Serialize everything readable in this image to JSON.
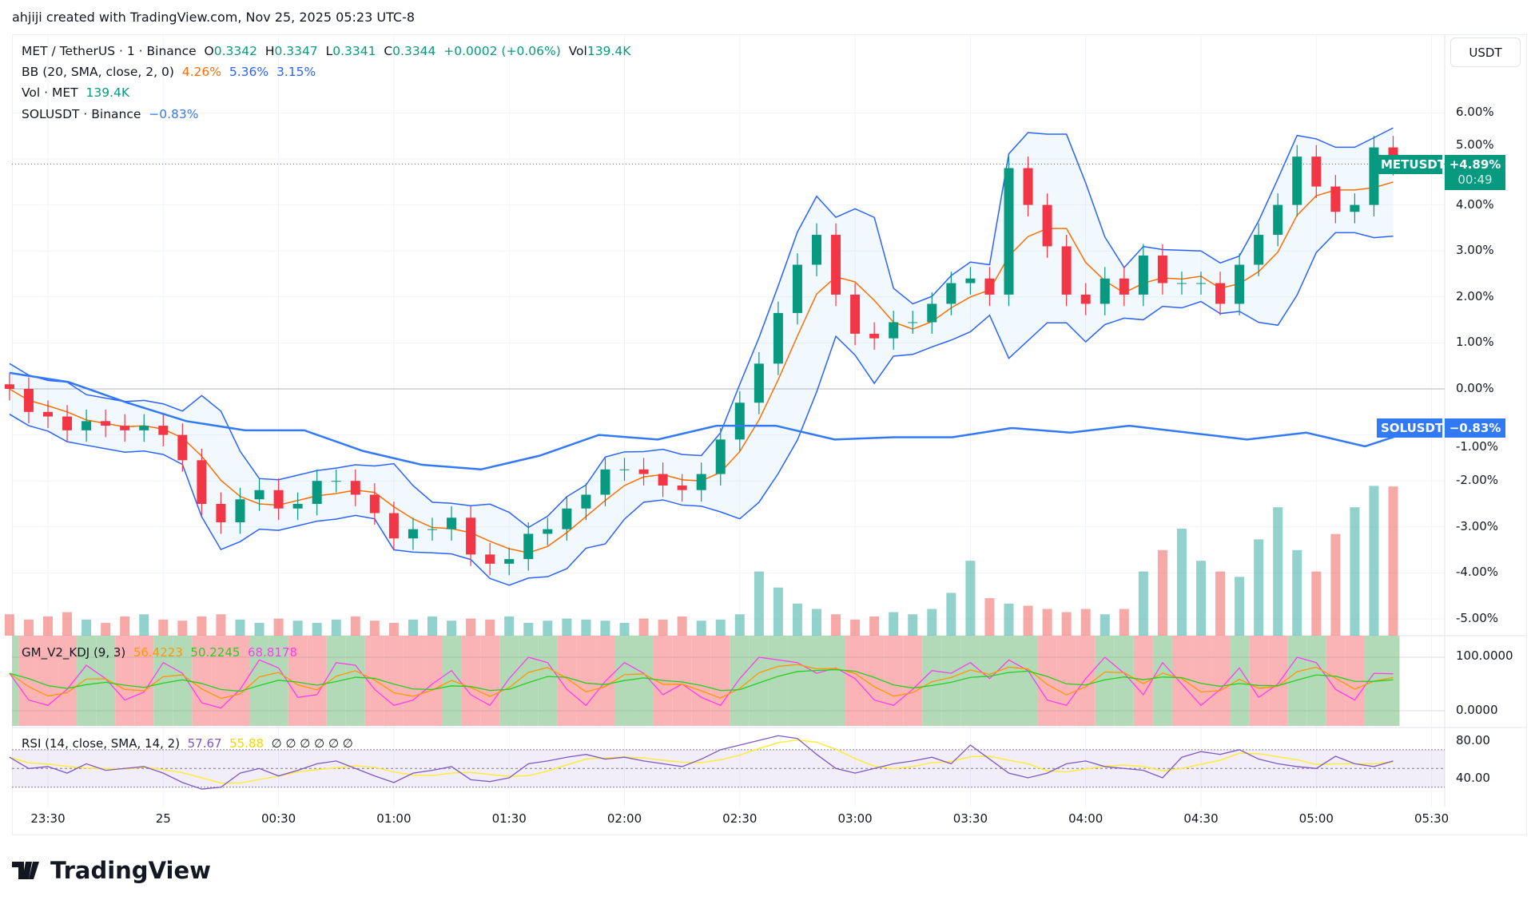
{
  "header": {
    "title": "ahjiji created with TradingView.com, Nov 25, 2025 05:23 UTC-8"
  },
  "legend": {
    "symbol": "MET / TetherUS · 1 · Binance",
    "o_label": "O",
    "o": "0.3342",
    "h_label": "H",
    "h": "0.3347",
    "l_label": "L",
    "l": "0.3341",
    "c_label": "C",
    "c": "0.3344",
    "change": "+0.0002 (+0.06%)",
    "vol_label": "Vol",
    "vol": "139.4K",
    "bb_label": "BB (20, SMA, close, 2, 0)",
    "bb_basis": "4.26%",
    "bb_upper": "5.36%",
    "bb_lower": "3.15%",
    "volume_label": "Vol · MET",
    "volume_value": "139.4K",
    "compare_label": "SOLUSDT · Binance",
    "compare_value": "−0.83%"
  },
  "price_axis": {
    "currency_button": "USDT",
    "ticks": [
      "6.00%",
      "5.00%",
      "4.00%",
      "3.00%",
      "2.00%",
      "1.00%",
      "0.00%",
      "-1.00%",
      "-2.00%",
      "-3.00%",
      "-4.00%",
      "-5.00%"
    ],
    "tick_values": [
      6,
      5,
      4,
      3,
      2,
      1,
      0,
      -1,
      -2,
      -3,
      -4,
      -5
    ],
    "met_tag": {
      "label": "METUSDT",
      "value": "+4.89%",
      "countdown": "00:49",
      "pct": 4.89
    },
    "sol_tag": {
      "label": "SOLUSDT",
      "value": "−0.83%",
      "pct": -0.83
    }
  },
  "time_axis": {
    "ticks": [
      "23:30",
      "25",
      "00:30",
      "01:00",
      "01:30",
      "02:00",
      "02:30",
      "03:00",
      "03:30",
      "04:00",
      "04:30",
      "05:00",
      "05:30"
    ]
  },
  "kdj": {
    "label": "GM_V2_KDJ (9, 3)",
    "k": "56.4223",
    "d": "50.2245",
    "j": "68.8178",
    "ticks": [
      "100.0000",
      "0.0000"
    ]
  },
  "rsi": {
    "label": "RSI (14, close, SMA, 14, 2)",
    "value": "57.67",
    "ma": "55.88",
    "extras": "∅ ∅ ∅ ∅ ∅ ∅",
    "ticks": [
      "80.00",
      "40.00"
    ]
  },
  "branding": {
    "logo": "TradingView"
  },
  "colors": {
    "up": "#089981",
    "down": "#f23645",
    "bb_basis": "#ff6d00",
    "bb_band": "#2962ff",
    "sol": "#3179f5",
    "k": "#ff9800",
    "d": "#22d11e",
    "j": "#ff3cf0",
    "rsi": "#7e57c2",
    "rsi_ma": "#ffeb3b"
  },
  "chart_data": {
    "type": "candlestick",
    "start_time": "23:20",
    "interval_minutes": 5,
    "ylabel": "% change",
    "ylim": [
      -5.5,
      6.7
    ],
    "close": [
      0.0,
      -0.5,
      -0.6,
      -0.9,
      -0.7,
      -0.8,
      -0.9,
      -0.8,
      -1.0,
      -1.55,
      -2.5,
      -2.9,
      -2.4,
      -2.2,
      -2.6,
      -2.5,
      -2.0,
      -2.0,
      -2.3,
      -2.7,
      -3.25,
      -3.05,
      -3.05,
      -2.8,
      -3.6,
      -3.8,
      -3.7,
      -3.15,
      -3.05,
      -2.6,
      -2.3,
      -1.75,
      -1.75,
      -1.85,
      -2.1,
      -2.2,
      -1.85,
      -1.1,
      -0.3,
      0.55,
      1.65,
      2.7,
      3.35,
      2.05,
      1.2,
      1.1,
      1.45,
      1.45,
      1.85,
      2.3,
      2.4,
      2.05,
      4.8,
      4.0,
      3.1,
      2.05,
      1.85,
      2.4,
      2.05,
      2.9,
      2.3,
      2.3,
      2.3,
      1.85,
      2.7,
      3.35,
      4.0,
      5.05,
      4.4,
      3.85,
      4.0,
      5.25,
      4.89
    ],
    "wick_pct": 0.25,
    "volume_k": [
      20,
      15,
      18,
      22,
      15,
      12,
      18,
      20,
      15,
      14,
      18,
      20,
      15,
      12,
      16,
      14,
      12,
      15,
      18,
      14,
      12,
      15,
      18,
      14,
      16,
      15,
      18,
      12,
      14,
      16,
      15,
      14,
      12,
      16,
      15,
      18,
      14,
      15,
      20,
      60,
      45,
      30,
      25,
      20,
      15,
      18,
      22,
      20,
      25,
      40,
      70,
      35,
      30,
      28,
      25,
      22,
      25,
      20,
      25,
      60,
      80,
      100,
      70,
      60,
      55,
      90,
      120,
      80,
      60,
      95,
      120,
      140,
      139.4
    ],
    "sol_pct": {
      "interval_minutes": 15,
      "values": [
        0.35,
        0.15,
        -0.3,
        -0.7,
        -0.9,
        -0.9,
        -1.35,
        -1.65,
        -1.75,
        -1.45,
        -1.0,
        -1.1,
        -0.8,
        -0.8,
        -1.1,
        -1.05,
        -1.05,
        -0.85,
        -0.95,
        -0.8,
        -0.95,
        -1.1,
        -0.95,
        -1.25,
        -0.83
      ]
    },
    "kdj_j": [
      70,
      20,
      10,
      40,
      85,
      60,
      20,
      35,
      90,
      70,
      15,
      5,
      40,
      95,
      80,
      25,
      30,
      90,
      85,
      40,
      10,
      20,
      50,
      75,
      30,
      10,
      60,
      100,
      90,
      40,
      10,
      55,
      90,
      70,
      30,
      50,
      25,
      10,
      60,
      100,
      95,
      90,
      70,
      80,
      60,
      20,
      10,
      40,
      75,
      70,
      90,
      60,
      95,
      75,
      20,
      10,
      60,
      100,
      70,
      30,
      90,
      50,
      10,
      40,
      80,
      25,
      50,
      100,
      90,
      40,
      20,
      70,
      69
    ],
    "rsi": [
      62,
      50,
      52,
      45,
      55,
      48,
      50,
      52,
      45,
      35,
      28,
      30,
      45,
      50,
      42,
      48,
      55,
      58,
      50,
      42,
      35,
      45,
      48,
      52,
      38,
      36,
      40,
      55,
      58,
      62,
      65,
      60,
      62,
      58,
      55,
      52,
      60,
      70,
      75,
      80,
      85,
      82,
      65,
      50,
      45,
      50,
      55,
      58,
      62,
      55,
      75,
      60,
      45,
      40,
      45,
      55,
      58,
      52,
      50,
      48,
      40,
      62,
      68,
      65,
      70,
      60,
      55,
      52,
      50,
      63,
      55,
      52,
      58
    ],
    "rsi_bands": [
      70,
      50,
      30
    ]
  }
}
